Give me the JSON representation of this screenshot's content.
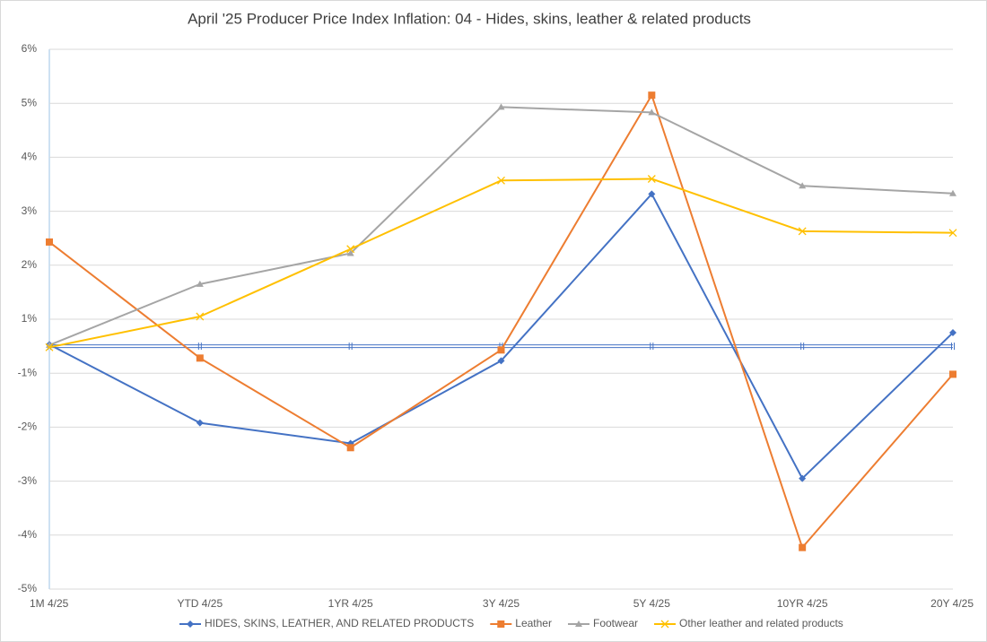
{
  "chart_data": {
    "type": "line",
    "title": "April '25 Producer Price Index Inflation: 04 - Hides, skins, leather & related products",
    "categories": [
      "1M 4/25",
      "YTD  4/25",
      "1YR 4/25",
      "3Y 4/25",
      "5Y 4/25",
      "10YR  4/25",
      "20Y 4/25"
    ],
    "ylim": [
      -4.5,
      5.5
    ],
    "yticks": [
      {
        "value": 5.5,
        "label": "6%"
      },
      {
        "value": 4.5,
        "label": "5%"
      },
      {
        "value": 3.5,
        "label": "4%"
      },
      {
        "value": 2.5,
        "label": "3%"
      },
      {
        "value": 1.5,
        "label": "2%"
      },
      {
        "value": 0.5,
        "label": "1%"
      },
      {
        "value": -0.5,
        "label": "-1%"
      },
      {
        "value": -1.5,
        "label": "-2%"
      },
      {
        "value": -2.5,
        "label": "-3%"
      },
      {
        "value": -3.5,
        "label": "-4%"
      },
      {
        "value": -4.5,
        "label": "-5%"
      }
    ],
    "grid": true,
    "legend": "bottom",
    "series": [
      {
        "name": "HIDES, SKINS, LEATHER, AND RELATED PRODUCTS",
        "color": "#4472c4",
        "marker": "diamond",
        "values": [
          0.03,
          -1.42,
          -1.8,
          -0.27,
          2.82,
          -2.45,
          0.25
        ]
      },
      {
        "name": "Leather",
        "color": "#ed7d31",
        "marker": "square",
        "values": [
          1.93,
          -0.22,
          -1.88,
          -0.07,
          4.65,
          -3.73,
          -0.52
        ]
      },
      {
        "name": "Footwear",
        "color": "#a5a5a5",
        "marker": "triangle",
        "values": [
          0.02,
          1.15,
          1.72,
          4.43,
          4.33,
          2.97,
          2.83
        ]
      },
      {
        "name": "Other leather and related products",
        "color": "#ffc000",
        "marker": "x",
        "values": [
          -0.02,
          0.55,
          1.8,
          3.07,
          3.1,
          2.13,
          2.1
        ]
      }
    ]
  }
}
